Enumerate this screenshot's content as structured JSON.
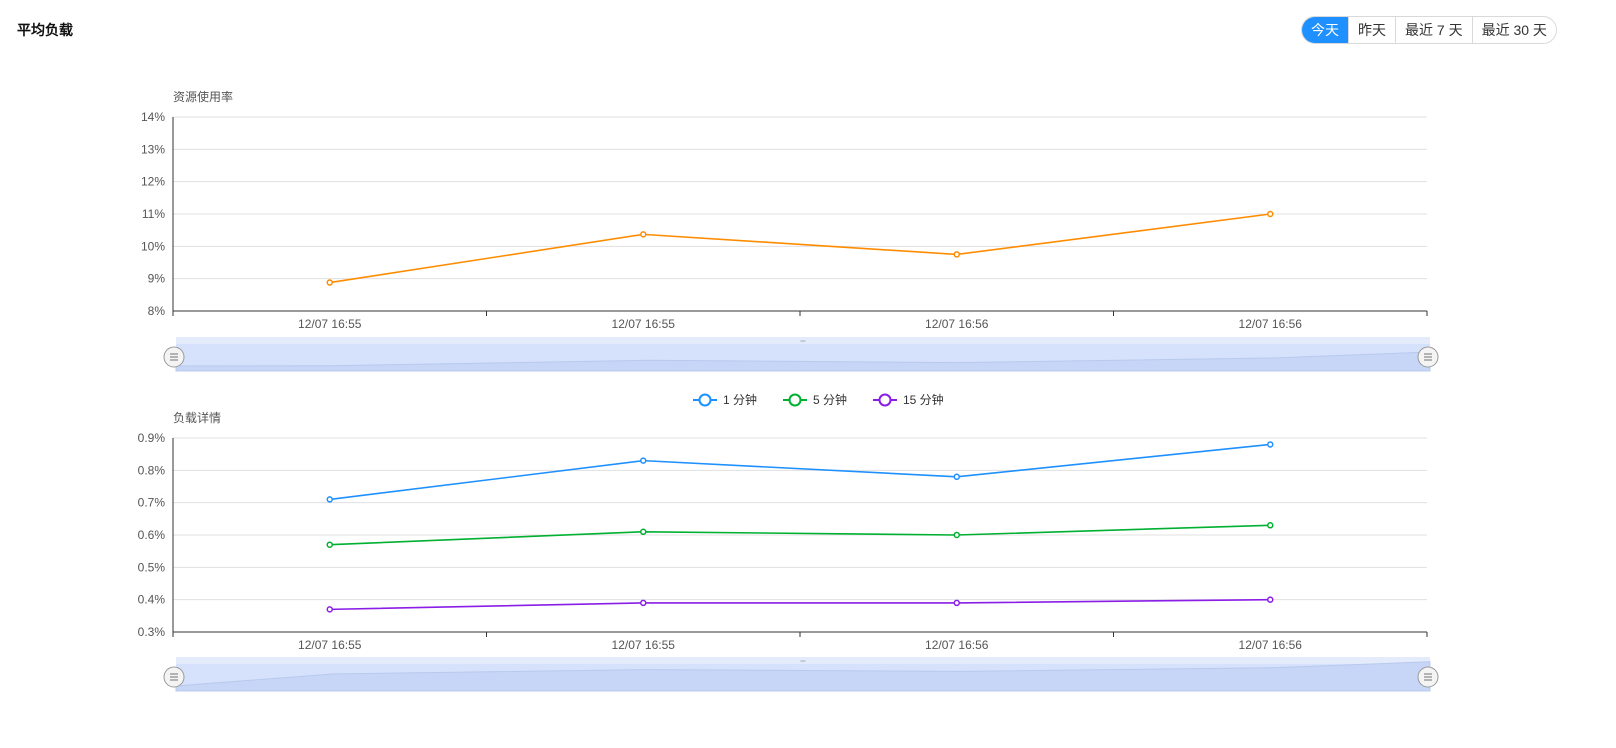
{
  "header": {
    "title": "平均负载",
    "ranges": [
      {
        "label": "今天",
        "active": true
      },
      {
        "label": "昨天",
        "active": false
      },
      {
        "label": "最近 7 天",
        "active": false
      },
      {
        "label": "最近 30 天",
        "active": false
      }
    ]
  },
  "colors": {
    "accent": "#1e90ff",
    "resource": "#ff8c00",
    "load1": "#1e90ff",
    "load5": "#00b030",
    "load15": "#8a1ee6",
    "grid": "#e0e0e0",
    "axis": "#333333",
    "zoom_fill": "#d6e2fb",
    "zoom_bar": "#e4ebfb"
  },
  "chart_data": [
    {
      "type": "line",
      "id": "resource",
      "title": "",
      "ylabel": "资源使用率",
      "xlabel": "",
      "ylim": [
        8,
        14
      ],
      "yticks": [
        "14%",
        "13%",
        "12%",
        "11%",
        "10%",
        "9%",
        "8%"
      ],
      "categories": [
        "12/07 16:55",
        "12/07 16:55",
        "12/07 16:56",
        "12/07 16:56"
      ],
      "series": [
        {
          "name": "",
          "color": "#ff8c00",
          "values": [
            8.88,
            10.37,
            9.75,
            11.0
          ]
        }
      ],
      "grid": true,
      "legend": "none",
      "data_zoom": {
        "start": 0,
        "end": 100
      }
    },
    {
      "type": "line",
      "id": "load",
      "title": "",
      "ylabel": "负载详情",
      "xlabel": "",
      "ylim": [
        0.3,
        0.9
      ],
      "yticks": [
        "0.9%",
        "0.8%",
        "0.7%",
        "0.6%",
        "0.5%",
        "0.4%",
        "0.3%"
      ],
      "categories": [
        "12/07 16:55",
        "12/07 16:55",
        "12/07 16:56",
        "12/07 16:56"
      ],
      "series": [
        {
          "name": "1 分钟",
          "color": "#1e90ff",
          "values": [
            0.71,
            0.83,
            0.78,
            0.88
          ]
        },
        {
          "name": "5 分钟",
          "color": "#00b030",
          "values": [
            0.57,
            0.61,
            0.6,
            0.63
          ]
        },
        {
          "name": "15 分钟",
          "color": "#8a1ee6",
          "values": [
            0.37,
            0.39,
            0.39,
            0.4
          ]
        }
      ],
      "grid": true,
      "legend": "top-center",
      "data_zoom": {
        "start": 0,
        "end": 100
      }
    }
  ]
}
